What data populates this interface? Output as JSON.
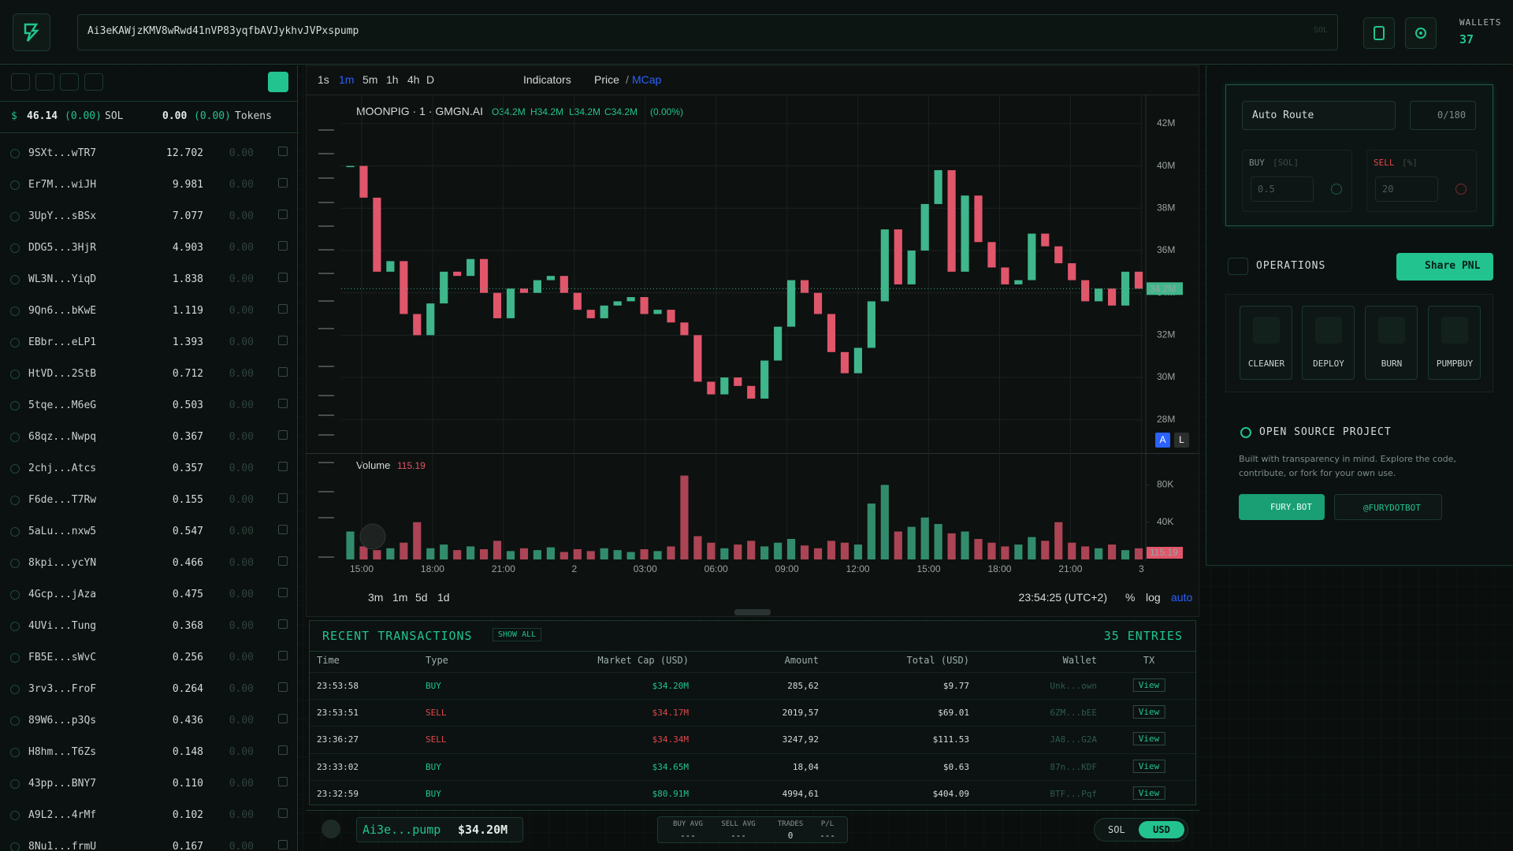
{
  "header": {
    "address": "Ai3eKAWjzKMV8wRwd41nVP83yqfbAVJykhvJVPxspump",
    "address_tag": "SOL",
    "wallets_label": "WALLETS",
    "wallets_count": "37"
  },
  "sidebar": {
    "currency": "$",
    "balance": "46.14",
    "balance_change": "(0.00)",
    "balance_unit": "SOL",
    "tokens": "0.00",
    "tokens_change": "(0.00)",
    "tokens_label": "Tokens",
    "wallets": [
      {
        "name": "9SXt...wTR7",
        "sol": "12.702",
        "tokens": "0.00"
      },
      {
        "name": "Er7M...wiJH",
        "sol": "9.981",
        "tokens": "0.00"
      },
      {
        "name": "3UpY...sBSx",
        "sol": "7.077",
        "tokens": "0.00"
      },
      {
        "name": "DDG5...3HjR",
        "sol": "4.903",
        "tokens": "0.00"
      },
      {
        "name": "WL3N...YiqD",
        "sol": "1.838",
        "tokens": "0.00"
      },
      {
        "name": "9Qn6...bKwE",
        "sol": "1.119",
        "tokens": "0.00"
      },
      {
        "name": "EBbr...eLP1",
        "sol": "1.393",
        "tokens": "0.00"
      },
      {
        "name": "HtVD...2StB",
        "sol": "0.712",
        "tokens": "0.00"
      },
      {
        "name": "5tqe...M6eG",
        "sol": "0.503",
        "tokens": "0.00"
      },
      {
        "name": "68qz...Nwpq",
        "sol": "0.367",
        "tokens": "0.00"
      },
      {
        "name": "2chj...Atcs",
        "sol": "0.357",
        "tokens": "0.00"
      },
      {
        "name": "F6de...T7Rw",
        "sol": "0.155",
        "tokens": "0.00"
      },
      {
        "name": "5aLu...nxw5",
        "sol": "0.547",
        "tokens": "0.00"
      },
      {
        "name": "8kpi...ycYN",
        "sol": "0.466",
        "tokens": "0.00"
      },
      {
        "name": "4Gcp...jAza",
        "sol": "0.475",
        "tokens": "0.00"
      },
      {
        "name": "4UVi...Tung",
        "sol": "0.368",
        "tokens": "0.00"
      },
      {
        "name": "FB5E...sWvC",
        "sol": "0.256",
        "tokens": "0.00"
      },
      {
        "name": "3rv3...FroF",
        "sol": "0.264",
        "tokens": "0.00"
      },
      {
        "name": "89W6...p3Qs",
        "sol": "0.436",
        "tokens": "0.00"
      },
      {
        "name": "H8hm...T6Zs",
        "sol": "0.148",
        "tokens": "0.00"
      },
      {
        "name": "43pp...BNY7",
        "sol": "0.110",
        "tokens": "0.00"
      },
      {
        "name": "A9L2...4rMf",
        "sol": "0.102",
        "tokens": "0.00"
      },
      {
        "name": "8Nu1...frmU",
        "sol": "0.167",
        "tokens": "0.00"
      }
    ]
  },
  "chart": {
    "timeframes": [
      "1s",
      "1m",
      "5m",
      "1h",
      "4h",
      "D"
    ],
    "indicators": "Indicators",
    "price": "Price",
    "separator": "/",
    "mcap": "MCap",
    "legend": {
      "symbol": "MOONPIG · 1 · GMGN.AI",
      "open": "O34.2M",
      "high": "H34.2M",
      "low": "L34.2M",
      "close": "C34.2M",
      "change": "(0.00%)"
    },
    "price_tag": "34.2M",
    "volume_label": "Volume",
    "volume_value": "115.19",
    "volume_tag": "115.19",
    "axis_buttons": [
      "A",
      "L"
    ],
    "ranges": [
      "3m",
      "1m",
      "5d",
      "1d"
    ],
    "clock": "23:54:25 (UTC+2)",
    "scale_options": [
      "%",
      "log",
      "auto"
    ]
  },
  "chart_data": [
    {
      "type": "candlestick",
      "values": [
        40.0,
        38.5,
        35.0,
        35.5,
        33.0,
        32.0,
        33.5,
        35.0,
        34.8,
        35.6,
        34.0,
        32.8,
        34.2,
        34.0,
        34.6,
        34.8,
        34.0,
        33.2,
        32.8,
        33.4,
        33.6,
        33.8,
        33.0,
        33.2,
        32.6,
        32.0,
        29.8,
        29.2,
        30.0,
        29.6,
        29.0,
        30.8,
        32.4,
        34.6,
        34.0,
        33.0,
        31.2,
        30.2,
        31.4,
        33.6,
        37.0,
        34.4,
        36.0,
        38.2,
        39.8,
        35.0,
        38.6,
        36.4,
        35.2,
        34.4,
        34.6,
        36.8,
        36.2,
        35.4,
        34.6,
        33.6,
        34.2,
        33.4,
        35.0,
        34.2
      ],
      "ylim": [
        26.5,
        43.3
      ],
      "yticks": [
        {
          "value": 28,
          "label": "28M"
        },
        {
          "value": 30,
          "label": "30M"
        },
        {
          "value": 32,
          "label": "32M"
        },
        {
          "value": 34,
          "label": "34M"
        },
        {
          "value": 36,
          "label": "36M"
        },
        {
          "value": 38,
          "label": "38M"
        },
        {
          "value": 40,
          "label": "40M"
        },
        {
          "value": 42,
          "label": "42M"
        }
      ],
      "xtick_labels": [
        "15:00",
        "18:00",
        "21:00",
        "2",
        "03:00",
        "06:00",
        "09:00",
        "12:00",
        "15:00",
        "18:00",
        "21:00",
        "3"
      ],
      "grid": true,
      "up_color": "#3fb68b",
      "down_color": "#e0566b"
    },
    {
      "type": "bar",
      "values": [
        30,
        14,
        10,
        12,
        18,
        40,
        12,
        16,
        10,
        14,
        11,
        20,
        9,
        12,
        10,
        13,
        8,
        11,
        9,
        12,
        10,
        8,
        11,
        9,
        14,
        90,
        25,
        18,
        12,
        16,
        20,
        14,
        18,
        22,
        15,
        12,
        20,
        18,
        16,
        60,
        80,
        30,
        35,
        45,
        38,
        28,
        30,
        22,
        18,
        14,
        16,
        24,
        20,
        40,
        18,
        14,
        12,
        16,
        10,
        12
      ],
      "ylim": [
        0,
        111.6
      ],
      "yticks": [
        {
          "value": 40,
          "label": "40K"
        },
        {
          "value": 80,
          "label": "80K"
        }
      ],
      "up_color": "#3fb68b",
      "down_color": "#e0566b"
    }
  ],
  "transactions": {
    "title": "RECENT TRANSACTIONS",
    "show_all": "SHOW ALL",
    "entries": "35 ENTRIES",
    "columns": [
      "Time",
      "Type",
      "Market Cap (USD)",
      "Amount",
      "Total (USD)",
      "Wallet",
      "TX"
    ],
    "rows": [
      {
        "time": "23:53:58",
        "type": "BUY",
        "market_cap": "$34.20M",
        "amount": "285,62",
        "total": "$9.77",
        "wallet": "Unk...own",
        "tx": "View",
        "color": "#22c38e"
      },
      {
        "time": "23:53:51",
        "type": "SELL",
        "market_cap": "$34.17M",
        "amount": "2019,57",
        "total": "$69.01",
        "wallet": "6ZM...bEE",
        "tx": "View",
        "color": "#e0474c"
      },
      {
        "time": "23:36:27",
        "type": "SELL",
        "market_cap": "$34.34M",
        "amount": "3247,92",
        "total": "$111.53",
        "wallet": "JA8...G2A",
        "tx": "View",
        "color": "#e0474c"
      },
      {
        "time": "23:33:02",
        "type": "BUY",
        "market_cap": "$34.65M",
        "amount": "18,04",
        "total": "$0.63",
        "wallet": "87n...KDF",
        "tx": "View",
        "color": "#22c38e"
      },
      {
        "time": "23:32:59",
        "type": "BUY",
        "market_cap": "$80.91M",
        "amount": "4994,61",
        "total": "$404.09",
        "wallet": "BTF...Pqf",
        "tx": "View",
        "color": "#22c38e"
      }
    ]
  },
  "footer": {
    "token": "Ai3e...pump",
    "market_cap": "$34.20M",
    "stats": [
      {
        "label": "BUY AVG",
        "value": "---"
      },
      {
        "label": "SELL AVG",
        "value": "---"
      },
      {
        "label": "TRADES",
        "value": "0"
      },
      {
        "label": "P/L",
        "value": "---"
      }
    ],
    "currency_options": [
      "SOL",
      "USD"
    ]
  },
  "panel": {
    "route": "Auto Route",
    "wallet_count": "0/180",
    "buy_label": "BUY",
    "buy_unit": "[SOL]",
    "buy_placeholder": "0.5",
    "sell_label": "SELL",
    "sell_unit": "[%]",
    "sell_placeholder": "20",
    "operations_title": "OPERATIONS",
    "share_pnl": "Share PNL",
    "operations": [
      "CLEANER",
      "DEPLOY",
      "BURN",
      "PUMPBUY"
    ],
    "open_source_title": "OPEN SOURCE PROJECT",
    "open_source_text": "Built with transparency in mind. Explore the code, contribute, or fork for your own use.",
    "links": [
      "FURY.BOT",
      "@FURYDOTBOT"
    ]
  }
}
